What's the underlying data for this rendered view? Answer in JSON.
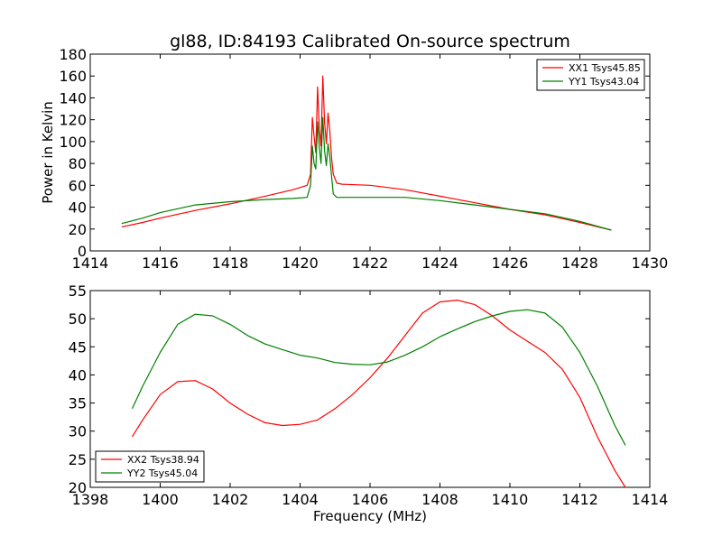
{
  "chart_data": [
    {
      "type": "line",
      "title": "gl88, ID:84193 Calibrated On-source spectrum",
      "xlabel": "",
      "ylabel": "Power in Kelvin",
      "xlim": [
        1414,
        1430
      ],
      "ylim": [
        0,
        180
      ],
      "xticks": [
        "1414",
        "1416",
        "1418",
        "1420",
        "1422",
        "1424",
        "1426",
        "1428",
        "1430"
      ],
      "yticks": [
        "0",
        "20",
        "40",
        "60",
        "80",
        "100",
        "120",
        "140",
        "160",
        "180"
      ],
      "legend_position": "top-right",
      "series": [
        {
          "name": "XX1 Tsys45.85",
          "color": "#ff0000",
          "points": [
            [
              1414.9,
              22
            ],
            [
              1415.5,
              26
            ],
            [
              1416,
              30
            ],
            [
              1417,
              37
            ],
            [
              1418,
              43
            ],
            [
              1419,
              50
            ],
            [
              1419.8,
              56
            ],
            [
              1420.2,
              60
            ],
            [
              1420.3,
              70
            ],
            [
              1420.35,
              122
            ],
            [
              1420.4,
              105
            ],
            [
              1420.45,
              90
            ],
            [
              1420.5,
              150
            ],
            [
              1420.55,
              112
            ],
            [
              1420.6,
              96
            ],
            [
              1420.65,
              160
            ],
            [
              1420.7,
              118
            ],
            [
              1420.75,
              98
            ],
            [
              1420.8,
              126
            ],
            [
              1420.85,
              110
            ],
            [
              1420.9,
              85
            ],
            [
              1420.95,
              70
            ],
            [
              1421.05,
              62
            ],
            [
              1421.2,
              61
            ],
            [
              1422,
              60
            ],
            [
              1423,
              56
            ],
            [
              1424,
              50
            ],
            [
              1425,
              44
            ],
            [
              1426,
              38
            ],
            [
              1427,
              33
            ],
            [
              1428,
              26
            ],
            [
              1428.9,
              19
            ]
          ]
        },
        {
          "name": "YY1 Tsys43.04",
          "color": "#008000",
          "points": [
            [
              1414.9,
              25
            ],
            [
              1415.5,
              30
            ],
            [
              1416,
              35
            ],
            [
              1417,
              42
            ],
            [
              1418,
              45
            ],
            [
              1419,
              47
            ],
            [
              1419.8,
              48
            ],
            [
              1420.2,
              49
            ],
            [
              1420.3,
              60
            ],
            [
              1420.35,
              96
            ],
            [
              1420.4,
              80
            ],
            [
              1420.45,
              75
            ],
            [
              1420.5,
              118
            ],
            [
              1420.55,
              95
            ],
            [
              1420.6,
              80
            ],
            [
              1420.65,
              122
            ],
            [
              1420.7,
              92
            ],
            [
              1420.75,
              78
            ],
            [
              1420.8,
              98
            ],
            [
              1420.85,
              86
            ],
            [
              1420.9,
              68
            ],
            [
              1420.95,
              52
            ],
            [
              1421.05,
              49
            ],
            [
              1422,
              49
            ],
            [
              1423,
              49
            ],
            [
              1424,
              46
            ],
            [
              1425,
              42
            ],
            [
              1426,
              38
            ],
            [
              1427,
              34
            ],
            [
              1428,
              27
            ],
            [
              1428.9,
              19
            ]
          ]
        }
      ]
    },
    {
      "type": "line",
      "title": "",
      "xlabel": "Frequency (MHz)",
      "ylabel": "",
      "xlim": [
        1398,
        1414
      ],
      "ylim": [
        20,
        55
      ],
      "xticks": [
        "1398",
        "1400",
        "1402",
        "1404",
        "1406",
        "1408",
        "1410",
        "1412",
        "1414"
      ],
      "yticks": [
        "20",
        "25",
        "30",
        "35",
        "40",
        "45",
        "50",
        "55"
      ],
      "legend_position": "bottom-left",
      "series": [
        {
          "name": "XX2 Tsys38.94",
          "color": "#ff0000",
          "points": [
            [
              1399.2,
              29
            ],
            [
              1399.5,
              32
            ],
            [
              1400,
              36.5
            ],
            [
              1400.5,
              38.8
            ],
            [
              1401,
              39
            ],
            [
              1401.5,
              37.5
            ],
            [
              1402,
              35
            ],
            [
              1402.5,
              33
            ],
            [
              1403,
              31.5
            ],
            [
              1403.5,
              31
            ],
            [
              1404,
              31.2
            ],
            [
              1404.5,
              32
            ],
            [
              1405,
              34
            ],
            [
              1405.5,
              36.5
            ],
            [
              1406,
              39.5
            ],
            [
              1406.5,
              43
            ],
            [
              1407,
              47
            ],
            [
              1407.5,
              51
            ],
            [
              1408,
              53
            ],
            [
              1408.5,
              53.3
            ],
            [
              1409,
              52.5
            ],
            [
              1409.5,
              50.5
            ],
            [
              1410,
              48
            ],
            [
              1410.5,
              46
            ],
            [
              1411,
              44
            ],
            [
              1411.5,
              41
            ],
            [
              1412,
              36
            ],
            [
              1412.5,
              29
            ],
            [
              1413,
              23
            ],
            [
              1413.3,
              20
            ]
          ]
        },
        {
          "name": "YY2 Tsys45.04",
          "color": "#008000",
          "points": [
            [
              1399.2,
              34
            ],
            [
              1399.5,
              38
            ],
            [
              1400,
              44
            ],
            [
              1400.5,
              49
            ],
            [
              1401,
              50.8
            ],
            [
              1401.5,
              50.5
            ],
            [
              1402,
              49
            ],
            [
              1402.5,
              47
            ],
            [
              1403,
              45.5
            ],
            [
              1403.5,
              44.5
            ],
            [
              1404,
              43.5
            ],
            [
              1404.5,
              43
            ],
            [
              1405,
              42.2
            ],
            [
              1405.5,
              41.9
            ],
            [
              1406,
              41.8
            ],
            [
              1406.5,
              42.3
            ],
            [
              1407,
              43.5
            ],
            [
              1407.5,
              45
            ],
            [
              1408,
              46.8
            ],
            [
              1408.5,
              48.2
            ],
            [
              1409,
              49.5
            ],
            [
              1409.5,
              50.5
            ],
            [
              1410,
              51.3
            ],
            [
              1410.5,
              51.6
            ],
            [
              1411,
              51
            ],
            [
              1411.5,
              48.5
            ],
            [
              1412,
              44
            ],
            [
              1412.5,
              38
            ],
            [
              1413,
              31
            ],
            [
              1413.3,
              27.5
            ]
          ]
        }
      ]
    }
  ]
}
